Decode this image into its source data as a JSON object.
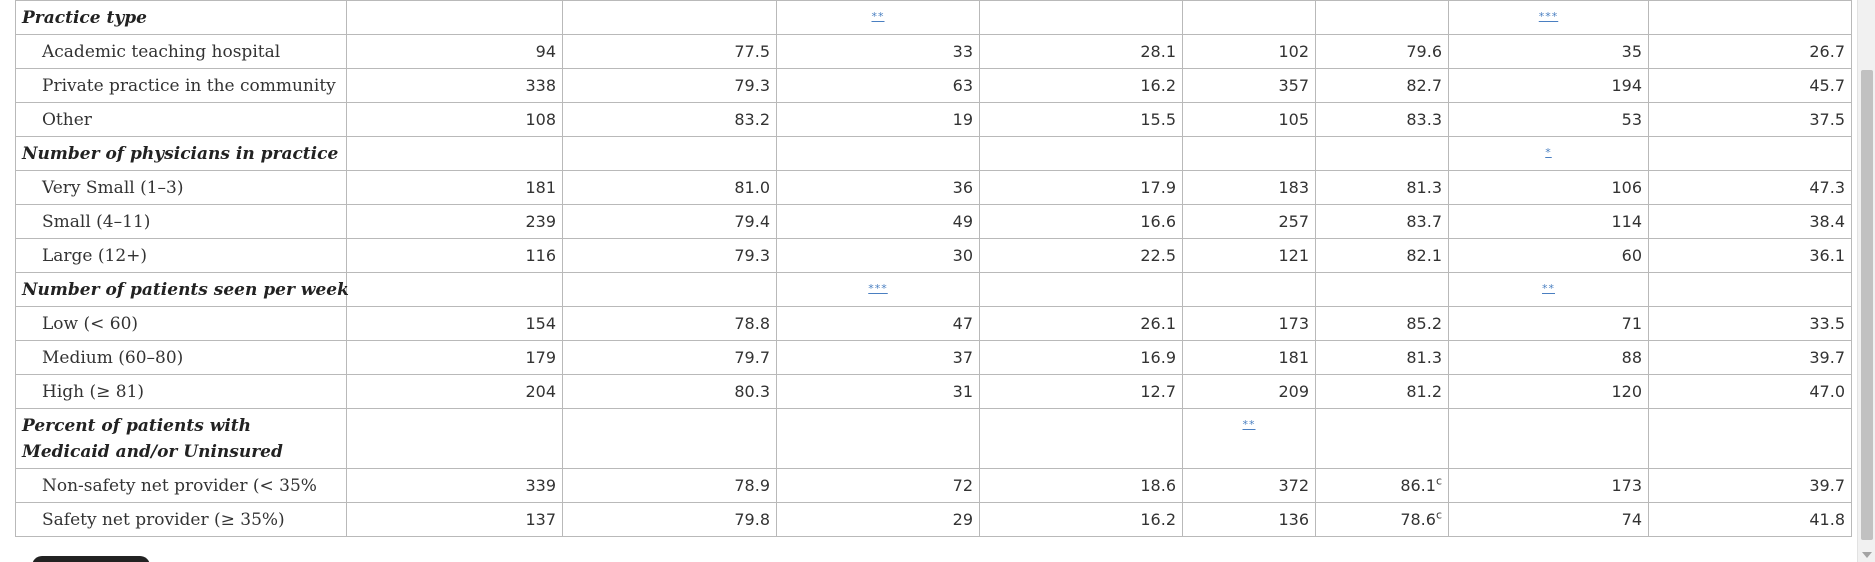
{
  "table": {
    "sections": [
      {
        "title": "Practice type",
        "tall": false,
        "sig": [
          "",
          "",
          "**",
          "",
          "",
          "",
          "***",
          ""
        ],
        "rows": [
          {
            "label": "Academic teaching hospital",
            "values": [
              "94",
              "77.5",
              "33",
              "28.1",
              "102",
              "79.6",
              "35",
              "26.7"
            ]
          },
          {
            "label": "Private practice in the community",
            "values": [
              "338",
              "79.3",
              "63",
              "16.2",
              "357",
              "82.7",
              "194",
              "45.7"
            ]
          },
          {
            "label": "Other",
            "values": [
              "108",
              "83.2",
              "19",
              "15.5",
              "105",
              "83.3",
              "53",
              "37.5"
            ]
          }
        ]
      },
      {
        "title": "Number of physicians in practice",
        "tall": false,
        "sig": [
          "",
          "",
          "",
          "",
          "",
          "",
          "*",
          ""
        ],
        "rows": [
          {
            "label": "Very Small (1–3)",
            "values": [
              "181",
              "81.0",
              "36",
              "17.9",
              "183",
              "81.3",
              "106",
              "47.3"
            ]
          },
          {
            "label": "Small (4–11)",
            "values": [
              "239",
              "79.4",
              "49",
              "16.6",
              "257",
              "83.7",
              "114",
              "38.4"
            ]
          },
          {
            "label": "Large (12+)",
            "values": [
              "116",
              "79.3",
              "30",
              "22.5",
              "121",
              "82.1",
              "60",
              "36.1"
            ]
          }
        ]
      },
      {
        "title": "Number of patients seen per week",
        "tall": false,
        "sig": [
          "",
          "",
          "***",
          "",
          "",
          "",
          "**",
          ""
        ],
        "rows": [
          {
            "label": "Low (< 60)",
            "values": [
              "154",
              "78.8",
              "47",
              "26.1",
              "173",
              "85.2",
              "71",
              "33.5"
            ]
          },
          {
            "label": "Medium (60–80)",
            "values": [
              "179",
              "79.7",
              "37",
              "16.9",
              "181",
              "81.3",
              "88",
              "39.7"
            ]
          },
          {
            "label": "High (≥ 81)",
            "values": [
              "204",
              "80.3",
              "31",
              "12.7",
              "209",
              "81.2",
              "120",
              "47.0"
            ]
          }
        ]
      },
      {
        "title": "Percent of patients with Medicaid and/or Uninsured",
        "tall": true,
        "sig": [
          "",
          "",
          "",
          "",
          "**",
          "",
          "",
          ""
        ],
        "rows": [
          {
            "label": "Non-safety net provider (< 35%",
            "values": [
              "339",
              "78.9",
              "72",
              "18.6",
              "372",
              "86.1",
              "173",
              "39.7"
            ],
            "sups": [
              "",
              "",
              "",
              "",
              "",
              "c",
              "",
              ""
            ]
          },
          {
            "label": "Safety net provider (≥ 35%)",
            "values": [
              "137",
              "79.8",
              "29",
              "16.2",
              "136",
              "78.6",
              "74",
              "41.8"
            ],
            "sups": [
              "",
              "",
              "",
              "",
              "",
              "c",
              "",
              ""
            ]
          }
        ]
      }
    ]
  }
}
